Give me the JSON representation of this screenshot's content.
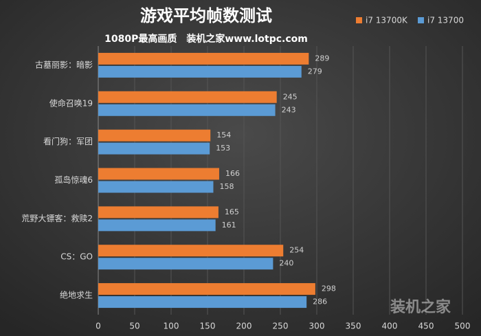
{
  "chart_data": {
    "type": "hbar",
    "title": "游戏平均帧数测试",
    "subtitle": "1080P最高画质　装机之家www.lotpc.com",
    "categories": [
      "古墓丽影：暗影",
      "使命召唤19",
      "看门狗：军团",
      "孤岛惊魂6",
      "荒野大镖客：救赎2",
      "CS：GO",
      "绝地求生"
    ],
    "series": [
      {
        "name": "i7 13700K",
        "color": "#ed7d31",
        "values": [
          289,
          245,
          154,
          166,
          165,
          254,
          298
        ]
      },
      {
        "name": "i7 13700",
        "color": "#5b9bd5",
        "values": [
          279,
          243,
          153,
          158,
          161,
          240,
          286
        ]
      }
    ],
    "xlim": [
      0,
      500
    ],
    "xticks": [
      0,
      50,
      100,
      150,
      200,
      250,
      300,
      350,
      400,
      450,
      500
    ],
    "grid": true,
    "legend": "top-right",
    "watermark": "装机之家"
  }
}
